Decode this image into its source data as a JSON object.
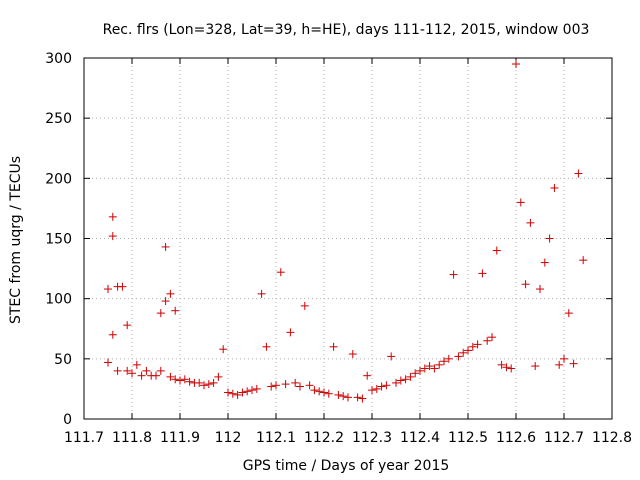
{
  "chart_data": {
    "type": "scatter",
    "title": "Rec. flrs (Lon=328, Lat=39, h=HE), days 111-112, 2015, window 003",
    "xlabel": "GPS time / Days of year 2015",
    "ylabel": "STEC from uqrg / TECUs",
    "xlim": [
      111.7,
      112.8
    ],
    "ylim": [
      0,
      300
    ],
    "xticks": [
      "111.7",
      "111.8",
      "111.9",
      "112",
      "112.1",
      "112.2",
      "112.3",
      "112.4",
      "112.5",
      "112.6",
      "112.7",
      "112.8"
    ],
    "yticks": [
      "0",
      "50",
      "100",
      "150",
      "200",
      "250",
      "300"
    ],
    "grid": true,
    "marker_color": "#cc0000",
    "marker": "plus",
    "series": [
      {
        "x": [
          111.75,
          111.75,
          111.76,
          111.76,
          111.76,
          111.77,
          111.77,
          111.78,
          111.79,
          111.79,
          111.8,
          111.81,
          111.82,
          111.83,
          111.84,
          111.85,
          111.86,
          111.86,
          111.87,
          111.87,
          111.88,
          111.88,
          111.89,
          111.89,
          111.9,
          111.91,
          111.92,
          111.93,
          111.94,
          111.95,
          111.96,
          111.97,
          111.98,
          111.99,
          112.0,
          112.01,
          112.02,
          112.03,
          112.04,
          112.05,
          112.06,
          112.07,
          112.08,
          112.09,
          112.1,
          112.11,
          112.12,
          112.13,
          112.14,
          112.15,
          112.16,
          112.17,
          112.18,
          112.19,
          112.2,
          112.21,
          112.22,
          112.23,
          112.24,
          112.25,
          112.26,
          112.27,
          112.28,
          112.29,
          112.3,
          112.31,
          112.32,
          112.33,
          112.34,
          112.35,
          112.36,
          112.37,
          112.38,
          112.39,
          112.4,
          112.41,
          112.42,
          112.43,
          112.44,
          112.45,
          112.46,
          112.47,
          112.48,
          112.49,
          112.5,
          112.51,
          112.52,
          112.53,
          112.54,
          112.55,
          112.56,
          112.57,
          112.58,
          112.59,
          112.6,
          112.61,
          112.62,
          112.63,
          112.64,
          112.65,
          112.66,
          112.67,
          112.68,
          112.69,
          112.7,
          112.71,
          112.72,
          112.73,
          112.74
        ],
        "y": [
          47,
          108,
          168,
          152,
          70,
          110,
          40,
          110,
          40,
          78,
          38,
          45,
          36,
          40,
          36,
          36,
          40,
          88,
          98,
          143,
          104,
          35,
          90,
          33,
          32,
          33,
          31,
          30,
          30,
          28,
          29,
          30,
          35,
          58,
          22,
          21,
          20,
          22,
          23,
          24,
          25,
          104,
          60,
          27,
          28,
          122,
          29,
          72,
          30,
          27,
          94,
          28,
          24,
          23,
          22,
          21,
          60,
          20,
          19,
          18,
          54,
          18,
          17,
          36,
          24,
          25,
          27,
          28,
          52,
          30,
          32,
          33,
          35,
          38,
          40,
          42,
          44,
          42,
          45,
          48,
          50,
          120,
          52,
          55,
          57,
          60,
          62,
          121,
          65,
          68,
          140,
          45,
          43,
          42,
          295,
          180,
          112,
          163,
          44,
          108,
          130,
          150,
          192,
          45,
          50,
          88,
          46,
          204,
          132
        ],
        "cluster_note": ""
      }
    ]
  }
}
